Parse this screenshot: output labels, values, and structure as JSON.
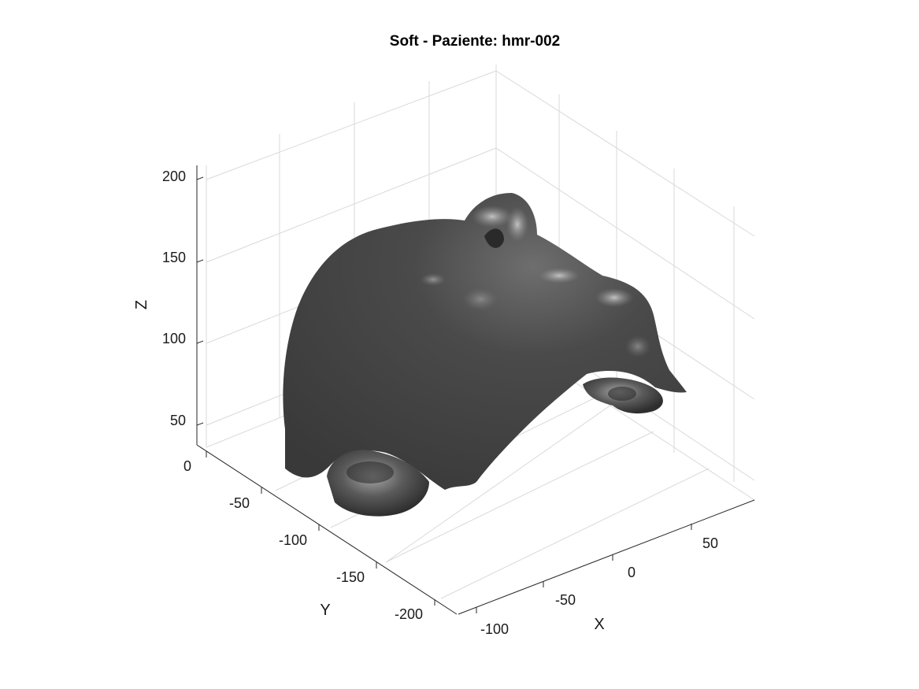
{
  "chart_data": {
    "type": "surface-3d",
    "title": "Soft - Paziente: hmr-002",
    "xlabel": "X",
    "ylabel": "Y",
    "zlabel": "Z",
    "x_ticks": [
      "-100",
      "-50",
      "0",
      "50"
    ],
    "y_ticks": [
      "0",
      "-50",
      "-100",
      "-150",
      "-200"
    ],
    "z_ticks": [
      "50",
      "100",
      "150",
      "200"
    ],
    "grid": true,
    "surface_color": "#3d3d3d",
    "highlight_color": "#b5b5b5",
    "background": "#ffffff"
  }
}
